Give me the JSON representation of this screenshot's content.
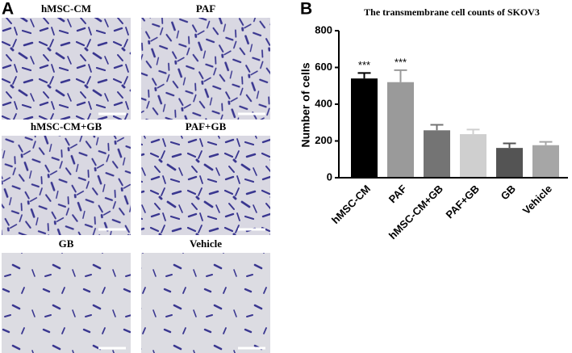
{
  "panel_a": {
    "label": "A",
    "images": [
      "hMSC-CM",
      "PAF",
      "hMSC-CM+GB",
      "PAF+GB",
      "GB",
      "Vehicle"
    ]
  },
  "panel_b": {
    "label": "B"
  },
  "chart_data": {
    "type": "bar",
    "title": "The transmembrane cell counts of SKOV3",
    "y_label": "Number of cells",
    "categories": [
      "hMSC-CM",
      "PAF",
      "hMSC-CM+GB",
      "PAF+GB",
      "GB",
      "Vehicle"
    ],
    "series": [
      {
        "values": [
          540,
          520,
          258,
          237,
          162,
          177
        ],
        "errors": [
          30,
          65,
          30,
          25,
          25,
          18
        ],
        "colors": [
          "#000000",
          "#9a9a9a",
          "#747474",
          "#cfcfcf",
          "#545454",
          "#a6a6a6"
        ]
      }
    ],
    "significance": [
      "***",
      "***",
      null,
      null,
      null,
      null
    ],
    "ylim": [
      0,
      800
    ],
    "yticks": [
      0,
      200,
      400,
      600,
      800
    ]
  }
}
